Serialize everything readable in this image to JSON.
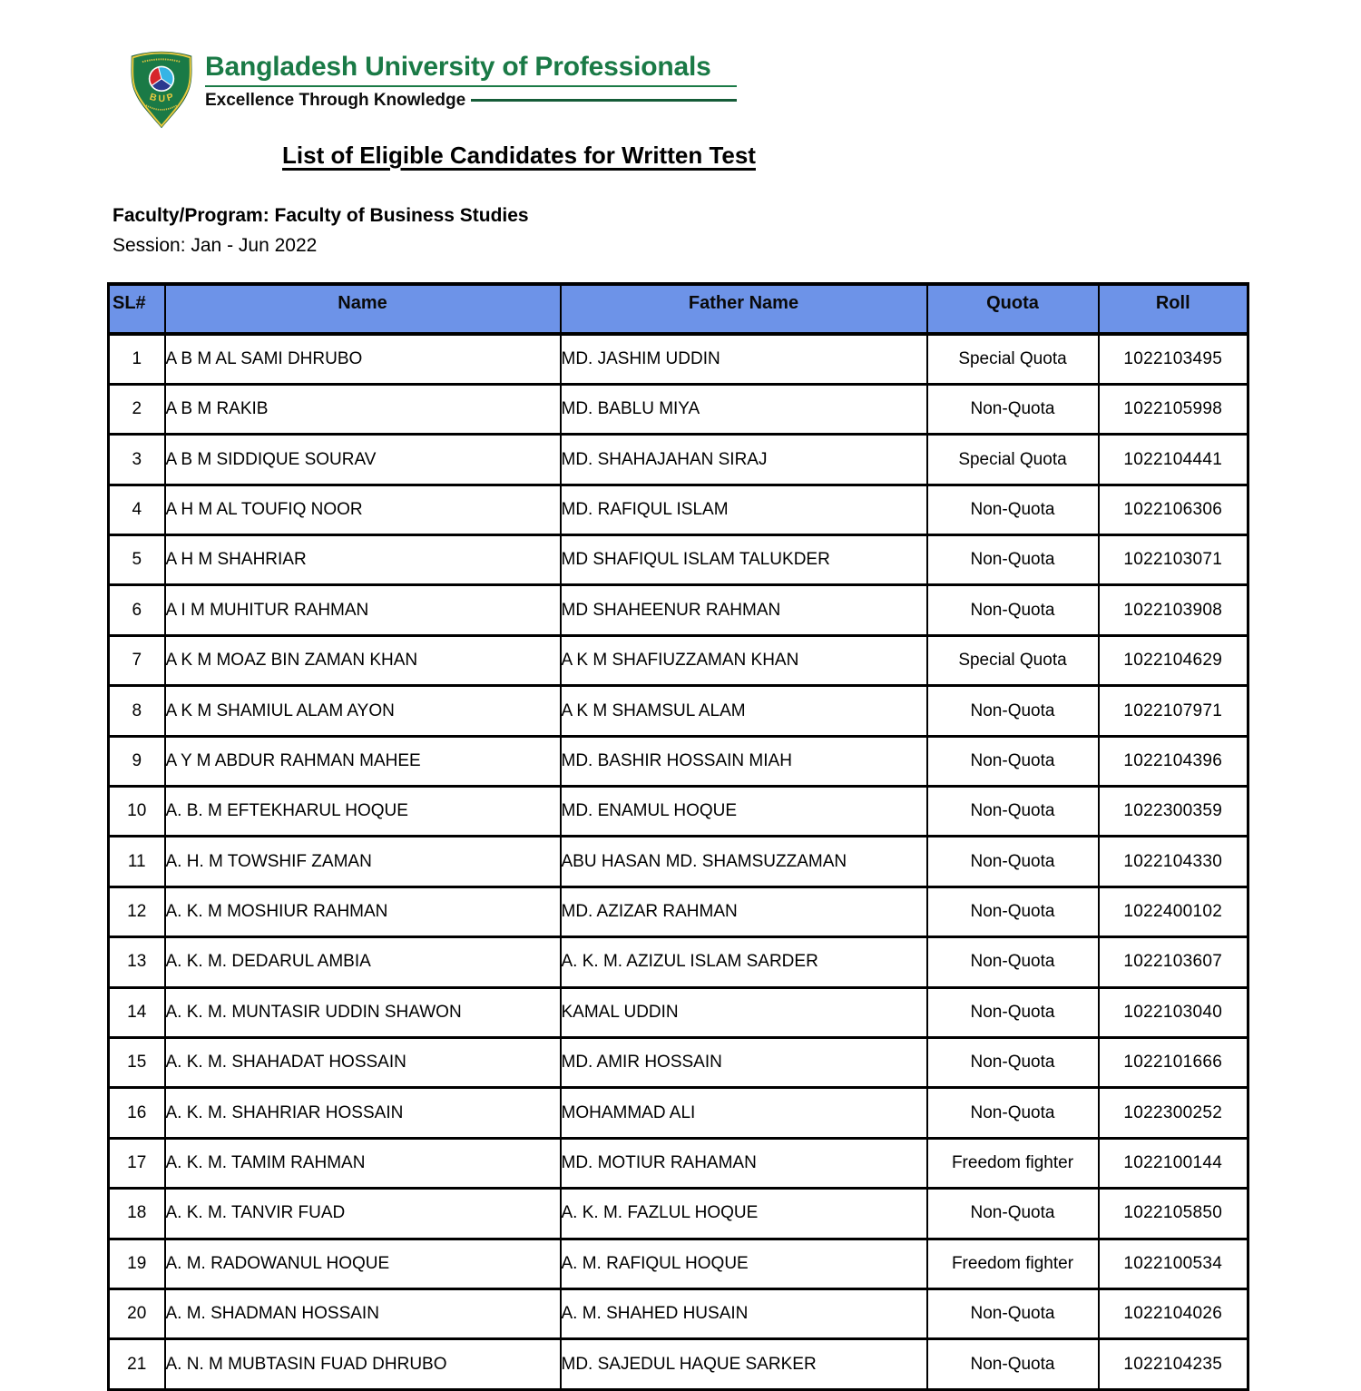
{
  "logo": {
    "shield_monogram": "B U P",
    "university_name": "Bangladesh University of Professionals",
    "tagline": "Excellence Through Knowledge",
    "colors": {
      "green": "#1a7a46",
      "dark_green": "#155c38",
      "gold": "#e9c93f",
      "red": "#d6252b",
      "royal_blue": "#2b3a8f",
      "light_blue": "#35b4e5"
    }
  },
  "title": "List of Eligible Candidates for Written Test",
  "faculty_line": "Faculty/Program: Faculty of Business Studies",
  "session_line": "Session: Jan - Jun 2022",
  "table": {
    "header_bg": "#6d93e8",
    "columns": [
      "SL#",
      "Name",
      "Father Name",
      "Quota",
      "Roll"
    ],
    "rows": [
      [
        "1",
        "A B M AL SAMI DHRUBO",
        "MD. JASHIM UDDIN",
        "Special Quota",
        "1022103495"
      ],
      [
        "2",
        "A B M RAKIB",
        "MD. BABLU MIYA",
        "Non-Quota",
        "1022105998"
      ],
      [
        "3",
        "A B M SIDDIQUE SOURAV",
        "MD. SHAHAJAHAN SIRAJ",
        "Special Quota",
        "1022104441"
      ],
      [
        "4",
        "A H M AL TOUFIQ NOOR",
        "MD. RAFIQUL ISLAM",
        "Non-Quota",
        "1022106306"
      ],
      [
        "5",
        "A H M SHAHRIAR",
        "MD SHAFIQUL ISLAM TALUKDER",
        "Non-Quota",
        "1022103071"
      ],
      [
        "6",
        "A I M MUHITUR RAHMAN",
        "MD SHAHEENUR RAHMAN",
        "Non-Quota",
        "1022103908"
      ],
      [
        "7",
        "A K M MOAZ BIN ZAMAN KHAN",
        "A K M SHAFIUZZAMAN KHAN",
        "Special Quota",
        "1022104629"
      ],
      [
        "8",
        "A K M SHAMIUL ALAM AYON",
        "A K M SHAMSUL ALAM",
        "Non-Quota",
        "1022107971"
      ],
      [
        "9",
        "A Y M ABDUR RAHMAN MAHEE",
        "MD. BASHIR HOSSAIN MIAH",
        "Non-Quota",
        "1022104396"
      ],
      [
        "10",
        "A. B. M EFTEKHARUL HOQUE",
        "MD. ENAMUL HOQUE",
        "Non-Quota",
        "1022300359"
      ],
      [
        "11",
        "A. H. M TOWSHIF ZAMAN",
        "ABU HASAN MD. SHAMSUZZAMAN",
        "Non-Quota",
        "1022104330"
      ],
      [
        "12",
        "A. K. M MOSHIUR RAHMAN",
        "MD. AZIZAR RAHMAN",
        "Non-Quota",
        "1022400102"
      ],
      [
        "13",
        "A. K. M. DEDARUL AMBIA",
        "A. K. M. AZIZUL ISLAM SARDER",
        "Non-Quota",
        "1022103607"
      ],
      [
        "14",
        "A. K. M. MUNTASIR UDDIN SHAWON",
        "KAMAL UDDIN",
        "Non-Quota",
        "1022103040"
      ],
      [
        "15",
        "A. K. M. SHAHADAT HOSSAIN",
        "MD. AMIR HOSSAIN",
        "Non-Quota",
        "1022101666"
      ],
      [
        "16",
        "A. K. M. SHAHRIAR HOSSAIN",
        "MOHAMMAD ALI",
        "Non-Quota",
        "1022300252"
      ],
      [
        "17",
        "A. K. M. TAMIM RAHMAN",
        "MD. MOTIUR RAHAMAN",
        "Freedom fighter",
        "1022100144"
      ],
      [
        "18",
        "A. K. M. TANVIR FUAD",
        "A. K. M. FAZLUL HOQUE",
        "Non-Quota",
        "1022105850"
      ],
      [
        "19",
        "A. M. RADOWANUL HOQUE",
        "A. M. RAFIQUL HOQUE",
        "Freedom fighter",
        "1022100534"
      ],
      [
        "20",
        "A. M. SHADMAN HOSSAIN",
        "A. M. SHAHED HUSAIN",
        "Non-Quota",
        "1022104026"
      ],
      [
        "21",
        "A. N. M MUBTASIN FUAD DHRUBO",
        "MD. SAJEDUL HAQUE SARKER",
        "Non-Quota",
        "1022104235"
      ]
    ]
  }
}
